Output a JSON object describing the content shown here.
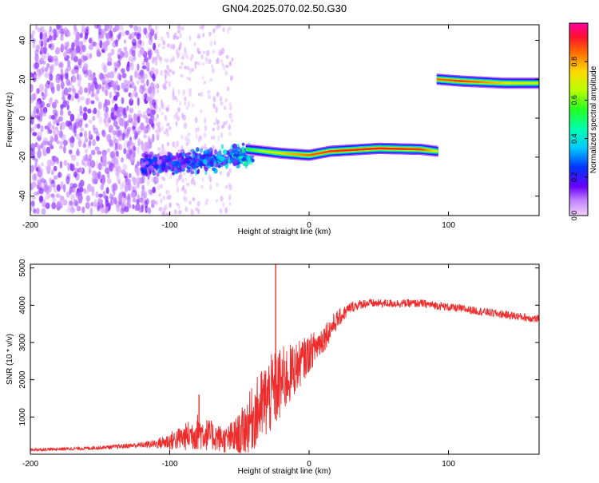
{
  "title": "GN04.2025.070.02.50.G30",
  "chart_data": [
    {
      "type": "heatmap",
      "name": "spectrogram",
      "xlabel": "Height of straight line (km)",
      "ylabel": "Frequency (Hz)",
      "xlim": [
        -200,
        165
      ],
      "ylim": [
        -50,
        48
      ],
      "xticks": [
        -200,
        -100,
        0,
        100
      ],
      "yticks": [
        -40,
        -20,
        0,
        20,
        40
      ],
      "colorbar": {
        "label": "Normalized spectral amplitude",
        "range": [
          0,
          1
        ],
        "ticks": [
          0,
          0.2,
          0.4,
          0.6,
          0.8
        ],
        "tick_labels": [
          "0.0",
          "0.2",
          "0.4",
          "0.6",
          "0.8"
        ]
      },
      "features": [
        {
          "name": "noise-cloud",
          "x_range": [
            -200,
            -110
          ],
          "freq_range": [
            -48,
            48
          ],
          "amplitude": 0.1
        },
        {
          "name": "noise-tail",
          "x_range": [
            -110,
            -55
          ],
          "freq_range": [
            -50,
            48
          ],
          "amplitude": 0.04
        },
        {
          "name": "scattered-band",
          "x_range": [
            -120,
            -40
          ],
          "freq_center": -25,
          "amplitude": 0.35
        },
        {
          "name": "main-tone",
          "segments": [
            {
              "x": -45,
              "freq": -16,
              "amplitude": 0.55
            },
            {
              "x": -20,
              "freq": -18,
              "amplitude": 0.75
            },
            {
              "x": 0,
              "freq": -19,
              "amplitude": 0.85
            },
            {
              "x": 15,
              "freq": -17,
              "amplitude": 0.9
            },
            {
              "x": 50,
              "freq": -15.5,
              "amplitude": 0.92
            },
            {
              "x": 80,
              "freq": -16,
              "amplitude": 0.9
            },
            {
              "x": 92,
              "freq": -17,
              "amplitude": 0.7
            }
          ]
        },
        {
          "name": "upper-tone",
          "segments": [
            {
              "x": 92,
              "freq": 20,
              "amplitude": 0.85
            },
            {
              "x": 110,
              "freq": 19,
              "amplitude": 0.9
            },
            {
              "x": 140,
              "freq": 18,
              "amplitude": 0.75
            },
            {
              "x": 165,
              "freq": 18,
              "amplitude": 0.7
            }
          ]
        }
      ]
    },
    {
      "type": "line",
      "name": "snr",
      "xlabel": "Height of straight line (km)",
      "ylabel": "SNR (10 * v/v)",
      "xlim": [
        -200,
        165
      ],
      "ylim": [
        0,
        5100
      ],
      "xticks": [
        -200,
        -100,
        0,
        100
      ],
      "yticks": [
        1000,
        2000,
        3000,
        4000,
        5000
      ],
      "series": [
        {
          "name": "SNR",
          "color": "#ee2c2c",
          "x": [
            -200,
            -180,
            -160,
            -140,
            -120,
            -110,
            -100,
            -90,
            -80,
            -70,
            -60,
            -50,
            -40,
            -30,
            -20,
            -10,
            0,
            10,
            20,
            30,
            40,
            50,
            60,
            70,
            80,
            90,
            100,
            110,
            120,
            130,
            140,
            150,
            165
          ],
          "values": [
            120,
            140,
            160,
            200,
            250,
            280,
            350,
            450,
            600,
            500,
            380,
            500,
            1000,
            1500,
            1900,
            2300,
            2700,
            3100,
            3600,
            3950,
            4050,
            4050,
            4050,
            4050,
            4050,
            4000,
            3950,
            3900,
            3850,
            3800,
            3750,
            3700,
            3620
          ],
          "noise": [
            40,
            40,
            45,
            55,
            80,
            120,
            250,
            350,
            500,
            400,
            350,
            600,
            900,
            1100,
            1000,
            700,
            500,
            400,
            250,
            150,
            120,
            110,
            110,
            110,
            110,
            110,
            110,
            110,
            110,
            110,
            110,
            110,
            110
          ],
          "spikes": [
            {
              "x": -24,
              "value": 5100
            },
            {
              "x": -79,
              "value": 1600
            }
          ]
        }
      ]
    }
  ]
}
